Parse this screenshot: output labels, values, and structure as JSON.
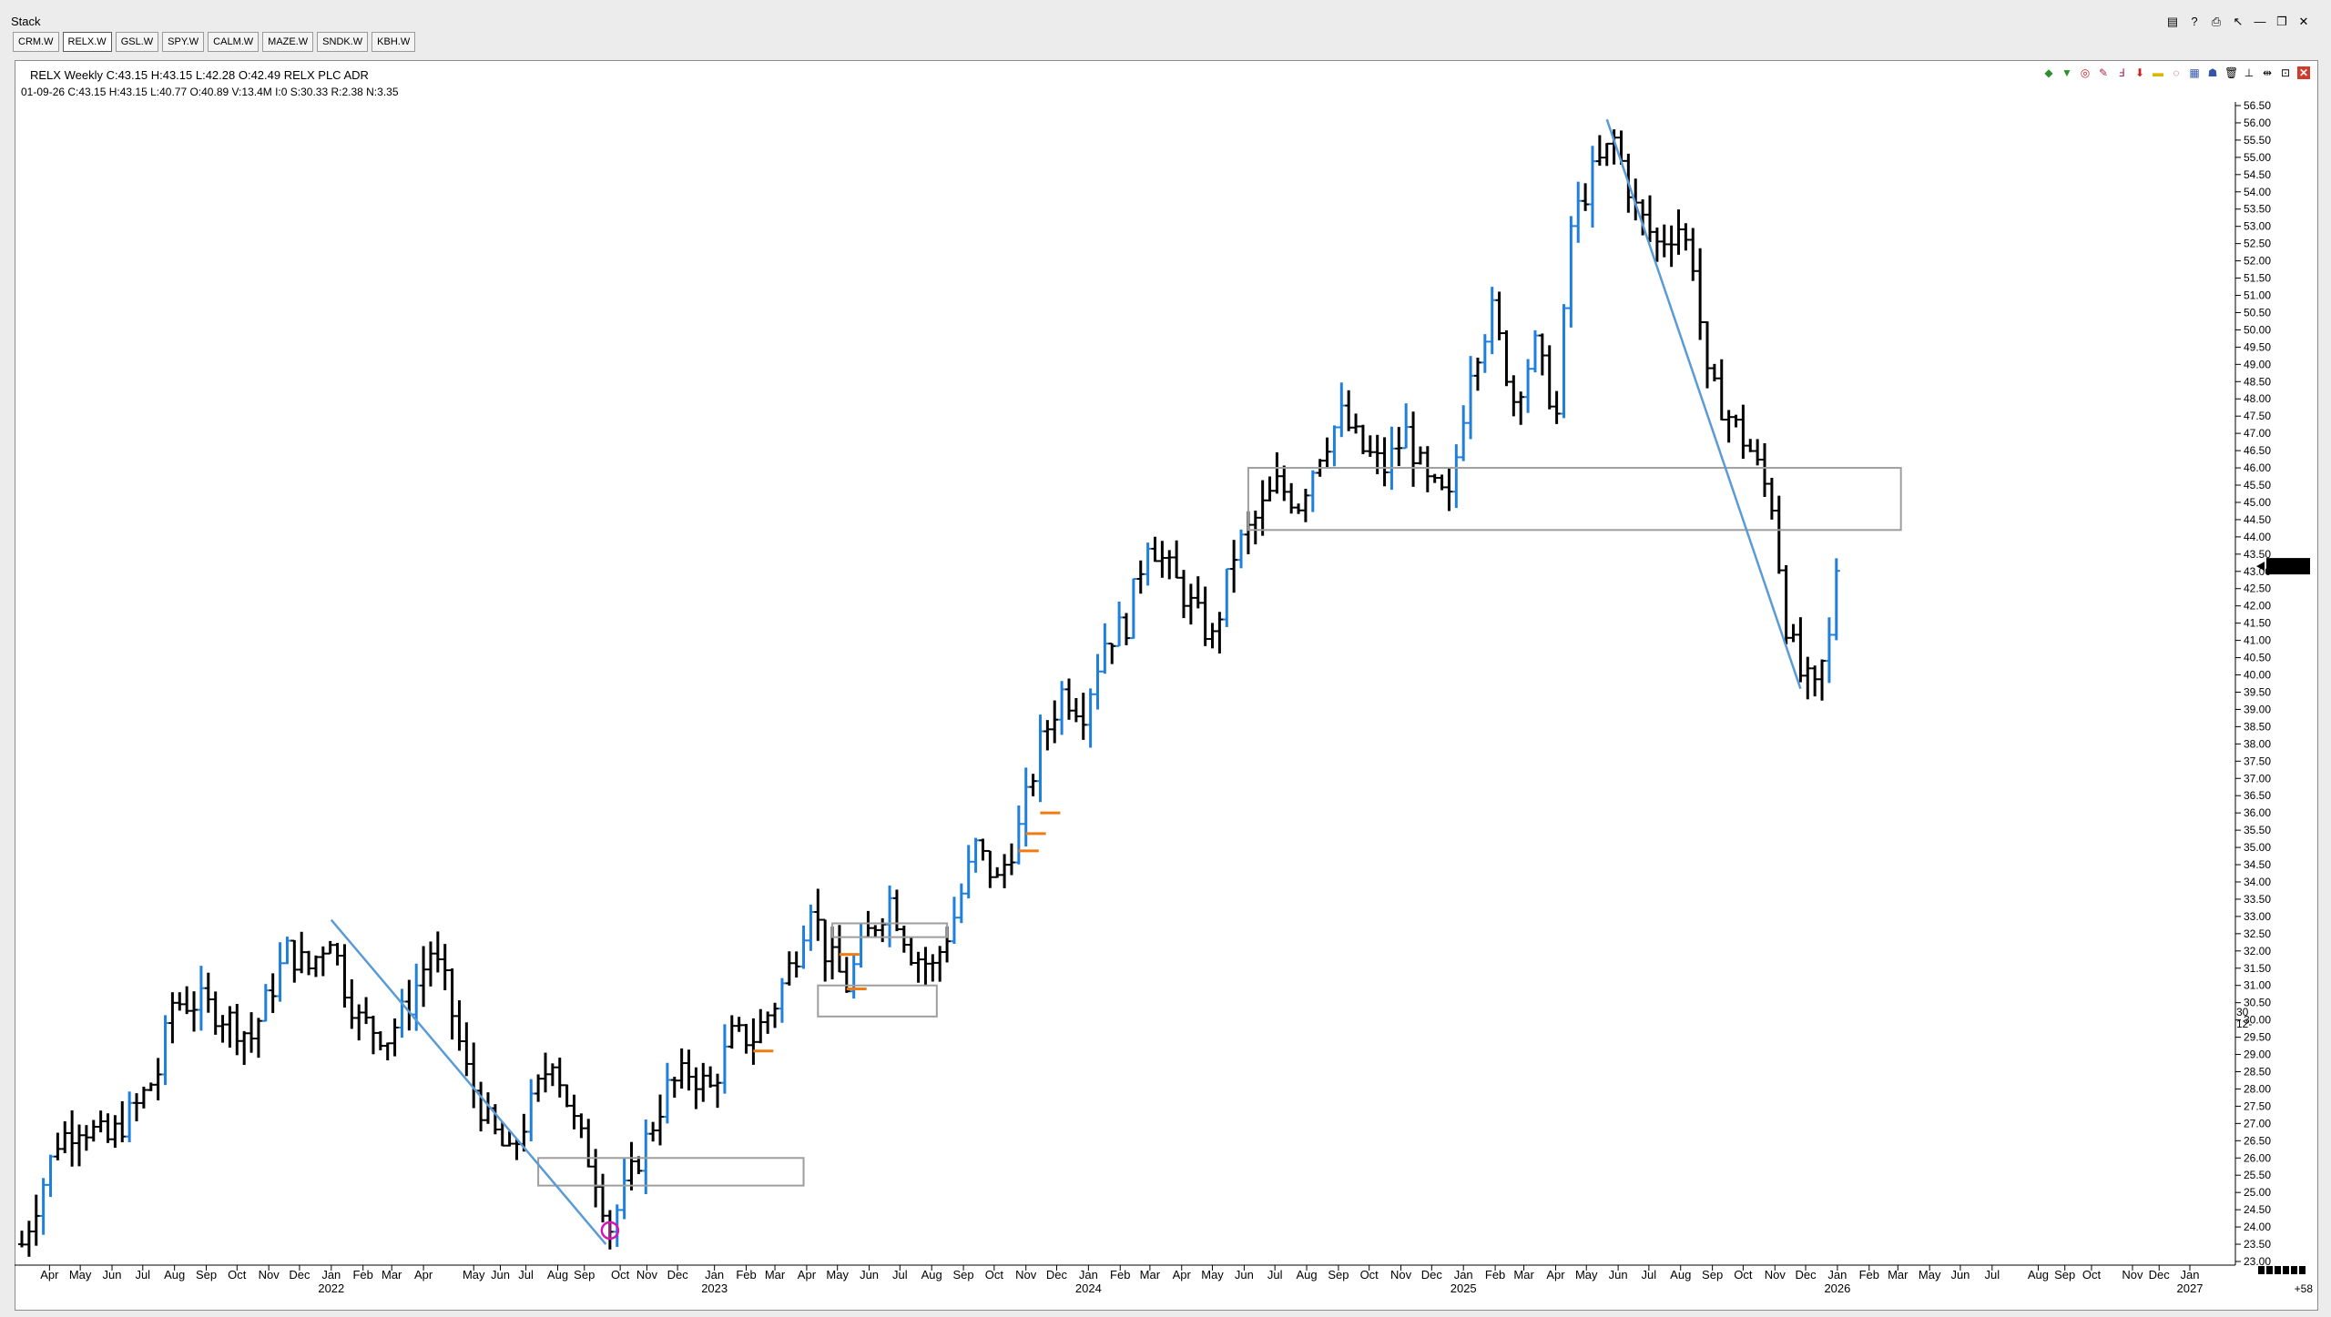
{
  "window": {
    "title": "Stack",
    "tabs": [
      "CRM.W",
      "RELX.W",
      "GSL.W",
      "SPY.W",
      "CALM.W",
      "MAZE.W",
      "SNDK.W",
      "KBH.W"
    ],
    "active_tab": "RELX.W"
  },
  "header": {
    "line1": "RELX Weekly C:43.15 H:43.15 L:42.28 O:42.49 RELX PLC ADR",
    "line2": "01-09-26  C:43.15  H:43.15  L:40.77  O:40.89  V:13.4M  I:0  S:30.33  R:2.38  N:3.35"
  },
  "colors": {
    "bar": "#000000",
    "up_bar": "#1f7fdc",
    "trendline": "#5b9bd5",
    "zone_box": "#9e9e9e",
    "orange_mark": "#f07b12",
    "circle": "#d414b4",
    "price_badge": "#000000"
  },
  "chart_data": {
    "type": "ohlc",
    "title": "RELX Weekly",
    "ylim": [
      23.0,
      56.5
    ],
    "y_ticks": [
      "56.50",
      "56.00",
      "55.50",
      "55.00",
      "54.50",
      "54.00",
      "53.50",
      "53.00",
      "52.50",
      "52.00",
      "51.50",
      "51.00",
      "50.50",
      "50.00",
      "49.50",
      "49.00",
      "48.50",
      "48.00",
      "47.50",
      "47.00",
      "46.50",
      "46.00",
      "45.50",
      "45.00",
      "44.50",
      "44.00",
      "43.50",
      "43.00",
      "42.50",
      "42.00",
      "41.50",
      "41.00",
      "40.50",
      "40.00",
      "39.50",
      "39.00",
      "38.50",
      "38.00",
      "37.50",
      "37.00",
      "36.50",
      "36.00",
      "35.50",
      "35.00",
      "34.50",
      "34.00",
      "33.50",
      "33.00",
      "32.50",
      "32.00",
      "31.50",
      "31.00",
      "30.50",
      "30.00",
      "29.50",
      "29.00",
      "28.50",
      "28.00",
      "27.50",
      "27.00",
      "26.50",
      "26.00",
      "25.50",
      "25.00",
      "24.50",
      "24.00",
      "23.50",
      "23.00"
    ],
    "x_start": "2021-03-05",
    "x_end": "2027-01-29",
    "x_month_labels": [
      {
        "date": "2021-04-01",
        "label": "Apr"
      },
      {
        "date": "2021-05-01",
        "label": "May"
      },
      {
        "date": "2021-06-01",
        "label": "Jun"
      },
      {
        "date": "2021-07-01",
        "label": "Jul"
      },
      {
        "date": "2021-08-01",
        "label": "Aug"
      },
      {
        "date": "2021-09-01",
        "label": "Sep"
      },
      {
        "date": "2021-10-01",
        "label": "Oct"
      },
      {
        "date": "2021-11-01",
        "label": "Nov"
      },
      {
        "date": "2021-12-01",
        "label": "Dec"
      },
      {
        "date": "2022-01-01",
        "label": "Jan"
      },
      {
        "date": "2022-02-01",
        "label": "Feb"
      },
      {
        "date": "2022-03-01",
        "label": "Mar"
      },
      {
        "date": "2022-04-01",
        "label": "Apr"
      },
      {
        "date": "2022-05-20",
        "label": "May"
      },
      {
        "date": "2022-06-15",
        "label": "Jun"
      },
      {
        "date": "2022-07-10",
        "label": "Jul"
      },
      {
        "date": "2022-08-10",
        "label": "Aug"
      },
      {
        "date": "2022-09-05",
        "label": "Sep"
      },
      {
        "date": "2022-10-10",
        "label": "Oct"
      },
      {
        "date": "2022-11-05",
        "label": "Nov"
      },
      {
        "date": "2022-12-05",
        "label": "Dec"
      },
      {
        "date": "2023-01-10",
        "label": "Jan"
      },
      {
        "date": "2023-02-10",
        "label": "Feb"
      },
      {
        "date": "2023-03-10",
        "label": "Mar"
      },
      {
        "date": "2023-04-10",
        "label": "Apr"
      },
      {
        "date": "2023-05-10",
        "label": "May"
      },
      {
        "date": "2023-06-10",
        "label": "Jun"
      },
      {
        "date": "2023-07-10",
        "label": "Jul"
      },
      {
        "date": "2023-08-10",
        "label": "Aug"
      },
      {
        "date": "2023-09-10",
        "label": "Sep"
      },
      {
        "date": "2023-10-10",
        "label": "Oct"
      },
      {
        "date": "2023-11-10",
        "label": "Nov"
      },
      {
        "date": "2023-12-10",
        "label": "Dec"
      },
      {
        "date": "2024-01-10",
        "label": "Jan"
      },
      {
        "date": "2024-02-10",
        "label": "Feb"
      },
      {
        "date": "2024-03-10",
        "label": "Mar"
      },
      {
        "date": "2024-04-10",
        "label": "Apr"
      },
      {
        "date": "2024-05-10",
        "label": "May"
      },
      {
        "date": "2024-06-10",
        "label": "Jun"
      },
      {
        "date": "2024-07-10",
        "label": "Jul"
      },
      {
        "date": "2024-08-10",
        "label": "Aug"
      },
      {
        "date": "2024-09-10",
        "label": "Sep"
      },
      {
        "date": "2024-10-10",
        "label": "Oct"
      },
      {
        "date": "2024-11-10",
        "label": "Nov"
      },
      {
        "date": "2024-12-10",
        "label": "Dec"
      },
      {
        "date": "2025-01-10",
        "label": "Jan"
      },
      {
        "date": "2025-02-10",
        "label": "Feb"
      },
      {
        "date": "2025-03-10",
        "label": "Mar"
      },
      {
        "date": "2025-04-10",
        "label": "Apr"
      },
      {
        "date": "2025-05-10",
        "label": "May"
      },
      {
        "date": "2025-06-10",
        "label": "Jun"
      },
      {
        "date": "2025-07-10",
        "label": "Jul"
      },
      {
        "date": "2025-08-10",
        "label": "Aug"
      },
      {
        "date": "2025-09-10",
        "label": "Sep"
      },
      {
        "date": "2025-10-10",
        "label": "Oct"
      },
      {
        "date": "2025-11-10",
        "label": "Nov"
      },
      {
        "date": "2025-12-10",
        "label": "Dec"
      },
      {
        "date": "2026-01-10",
        "label": "Jan"
      },
      {
        "date": "2026-02-10",
        "label": "Feb"
      },
      {
        "date": "2026-03-10",
        "label": "Mar"
      },
      {
        "date": "2026-04-10",
        "label": "May"
      },
      {
        "date": "2026-05-10",
        "label": "Jun"
      },
      {
        "date": "2026-06-10",
        "label": "Jul"
      },
      {
        "date": "2026-07-25",
        "label": "Aug"
      },
      {
        "date": "2026-08-20",
        "label": "Sep"
      },
      {
        "date": "2026-09-15",
        "label": "Oct"
      },
      {
        "date": "2026-10-25",
        "label": "Nov"
      },
      {
        "date": "2026-11-20",
        "label": "Dec"
      },
      {
        "date": "2026-12-20",
        "label": "Jan"
      }
    ],
    "x_year_labels": [
      {
        "date": "2022-01-01",
        "label": "2022"
      },
      {
        "date": "2023-01-10",
        "label": "2023"
      },
      {
        "date": "2024-01-10",
        "label": "2024"
      },
      {
        "date": "2025-01-10",
        "label": "2025"
      },
      {
        "date": "2026-01-10",
        "label": "2026"
      },
      {
        "date": "2026-12-20",
        "label": "2027"
      }
    ],
    "last_price_label": "43.15",
    "last_price": 43.15,
    "right_side_note": [
      "30",
      "12-"
    ],
    "corner_note": "+58",
    "ohlc_anchor_points": [
      {
        "d": "2021-03-05",
        "c": 23.5
      },
      {
        "d": "2021-04-09",
        "c": 26.5
      },
      {
        "d": "2021-04-30",
        "c": 27.0
      },
      {
        "d": "2021-05-28",
        "c": 26.5
      },
      {
        "d": "2021-06-25",
        "c": 27.5
      },
      {
        "d": "2021-07-16",
        "c": 28.5
      },
      {
        "d": "2021-07-30",
        "c": 30.5
      },
      {
        "d": "2021-08-27",
        "c": 30.5
      },
      {
        "d": "2021-09-24",
        "c": 30.0
      },
      {
        "d": "2021-10-15",
        "c": 29.5
      },
      {
        "d": "2021-11-05",
        "c": 31.0
      },
      {
        "d": "2021-11-19",
        "c": 32.0
      },
      {
        "d": "2021-12-10",
        "c": 31.5
      },
      {
        "d": "2021-12-31",
        "c": 32.5
      },
      {
        "d": "2022-01-14",
        "c": 31.0
      },
      {
        "d": "2022-01-28",
        "c": 30.0
      },
      {
        "d": "2022-02-25",
        "c": 29.5
      },
      {
        "d": "2022-03-18",
        "c": 30.5
      },
      {
        "d": "2022-04-08",
        "c": 32.0
      },
      {
        "d": "2022-04-22",
        "c": 31.0
      },
      {
        "d": "2022-05-13",
        "c": 28.5
      },
      {
        "d": "2022-06-03",
        "c": 27.0
      },
      {
        "d": "2022-06-24",
        "c": 26.0
      },
      {
        "d": "2022-07-15",
        "c": 27.5
      },
      {
        "d": "2022-08-05",
        "c": 29.0
      },
      {
        "d": "2022-08-26",
        "c": 27.0
      },
      {
        "d": "2022-09-16",
        "c": 25.5
      },
      {
        "d": "2022-09-30",
        "c": 24.0
      },
      {
        "d": "2022-10-14",
        "c": 25.0
      },
      {
        "d": "2022-11-04",
        "c": 26.5
      },
      {
        "d": "2022-11-25",
        "c": 28.0
      },
      {
        "d": "2022-12-16",
        "c": 28.5
      },
      {
        "d": "2023-01-06",
        "c": 28.0
      },
      {
        "d": "2023-01-27",
        "c": 29.5
      },
      {
        "d": "2023-02-17",
        "c": 29.5
      },
      {
        "d": "2023-03-10",
        "c": 30.5
      },
      {
        "d": "2023-03-31",
        "c": 32.0
      },
      {
        "d": "2023-04-14",
        "c": 33.5
      },
      {
        "d": "2023-04-28",
        "c": 32.0
      },
      {
        "d": "2023-05-19",
        "c": 31.0
      },
      {
        "d": "2023-06-09",
        "c": 32.5
      },
      {
        "d": "2023-06-30",
        "c": 33.5
      },
      {
        "d": "2023-07-21",
        "c": 32.0
      },
      {
        "d": "2023-08-11",
        "c": 31.5
      },
      {
        "d": "2023-09-01",
        "c": 33.0
      },
      {
        "d": "2023-09-22",
        "c": 35.0
      },
      {
        "d": "2023-10-13",
        "c": 34.0
      },
      {
        "d": "2023-11-03",
        "c": 35.5
      },
      {
        "d": "2023-11-24",
        "c": 38.0
      },
      {
        "d": "2023-12-15",
        "c": 39.5
      },
      {
        "d": "2024-01-05",
        "c": 39.0
      },
      {
        "d": "2024-01-26",
        "c": 41.0
      },
      {
        "d": "2024-02-16",
        "c": 41.5
      },
      {
        "d": "2024-03-08",
        "c": 44.0
      },
      {
        "d": "2024-03-29",
        "c": 43.0
      },
      {
        "d": "2024-04-19",
        "c": 42.0
      },
      {
        "d": "2024-05-10",
        "c": 41.0
      },
      {
        "d": "2024-05-31",
        "c": 43.5
      },
      {
        "d": "2024-06-21",
        "c": 44.5
      },
      {
        "d": "2024-07-12",
        "c": 45.5
      },
      {
        "d": "2024-08-02",
        "c": 45.0
      },
      {
        "d": "2024-08-23",
        "c": 46.5
      },
      {
        "d": "2024-09-13",
        "c": 47.5
      },
      {
        "d": "2024-10-04",
        "c": 46.5
      },
      {
        "d": "2024-10-25",
        "c": 46.0
      },
      {
        "d": "2024-11-15",
        "c": 47.0
      },
      {
        "d": "2024-12-06",
        "c": 45.5
      },
      {
        "d": "2024-12-27",
        "c": 45.0
      },
      {
        "d": "2025-01-17",
        "c": 49.0
      },
      {
        "d": "2025-02-07",
        "c": 50.5
      },
      {
        "d": "2025-02-28",
        "c": 48.0
      },
      {
        "d": "2025-03-21",
        "c": 49.5
      },
      {
        "d": "2025-04-11",
        "c": 47.5
      },
      {
        "d": "2025-04-25",
        "c": 53.0
      },
      {
        "d": "2025-05-16",
        "c": 54.5
      },
      {
        "d": "2025-06-06",
        "c": 55.5
      },
      {
        "d": "2025-06-27",
        "c": 53.5
      },
      {
        "d": "2025-07-18",
        "c": 52.5
      },
      {
        "d": "2025-08-08",
        "c": 53.0
      },
      {
        "d": "2025-08-22",
        "c": 52.0
      },
      {
        "d": "2025-09-05",
        "c": 48.5
      },
      {
        "d": "2025-09-26",
        "c": 47.5
      },
      {
        "d": "2025-10-17",
        "c": 46.5
      },
      {
        "d": "2025-11-07",
        "c": 45.0
      },
      {
        "d": "2025-11-21",
        "c": 41.5
      },
      {
        "d": "2025-12-05",
        "c": 40.0
      },
      {
        "d": "2025-12-19",
        "c": 39.5
      },
      {
        "d": "2026-01-02",
        "c": 41.0
      },
      {
        "d": "2026-01-09",
        "c": 43.15
      }
    ],
    "annotations": {
      "trendlines": [
        {
          "from": {
            "d": "2022-01-01",
            "p": 32.9
          },
          "to": {
            "d": "2022-09-26",
            "p": 23.5
          }
        },
        {
          "from": {
            "d": "2025-05-30",
            "p": 56.1
          },
          "to": {
            "d": "2025-12-05",
            "p": 39.6
          }
        }
      ],
      "zones": [
        {
          "from_d": "2022-07-22",
          "to_d": "2023-04-07",
          "top": 26.0,
          "bottom": 25.2
        },
        {
          "from_d": "2023-04-21",
          "to_d": "2023-08-15",
          "top": 31.0,
          "bottom": 30.1
        },
        {
          "from_d": "2023-05-05",
          "to_d": "2023-08-25",
          "top": 32.8,
          "bottom": 32.4
        },
        {
          "from_d": "2024-06-14",
          "to_d": "2026-03-13",
          "top": 46.0,
          "bottom": 44.2
        }
      ],
      "circle": {
        "d": "2022-09-30",
        "p": 23.9
      },
      "orange_marks": [
        {
          "d": "2023-02-24",
          "p": 29.1
        },
        {
          "d": "2023-05-19",
          "p": 31.9
        },
        {
          "d": "2023-05-26",
          "p": 30.9
        },
        {
          "d": "2023-11-10",
          "p": 34.9
        },
        {
          "d": "2023-11-17",
          "p": 35.4
        },
        {
          "d": "2023-12-01",
          "p": 36.0
        }
      ]
    }
  }
}
